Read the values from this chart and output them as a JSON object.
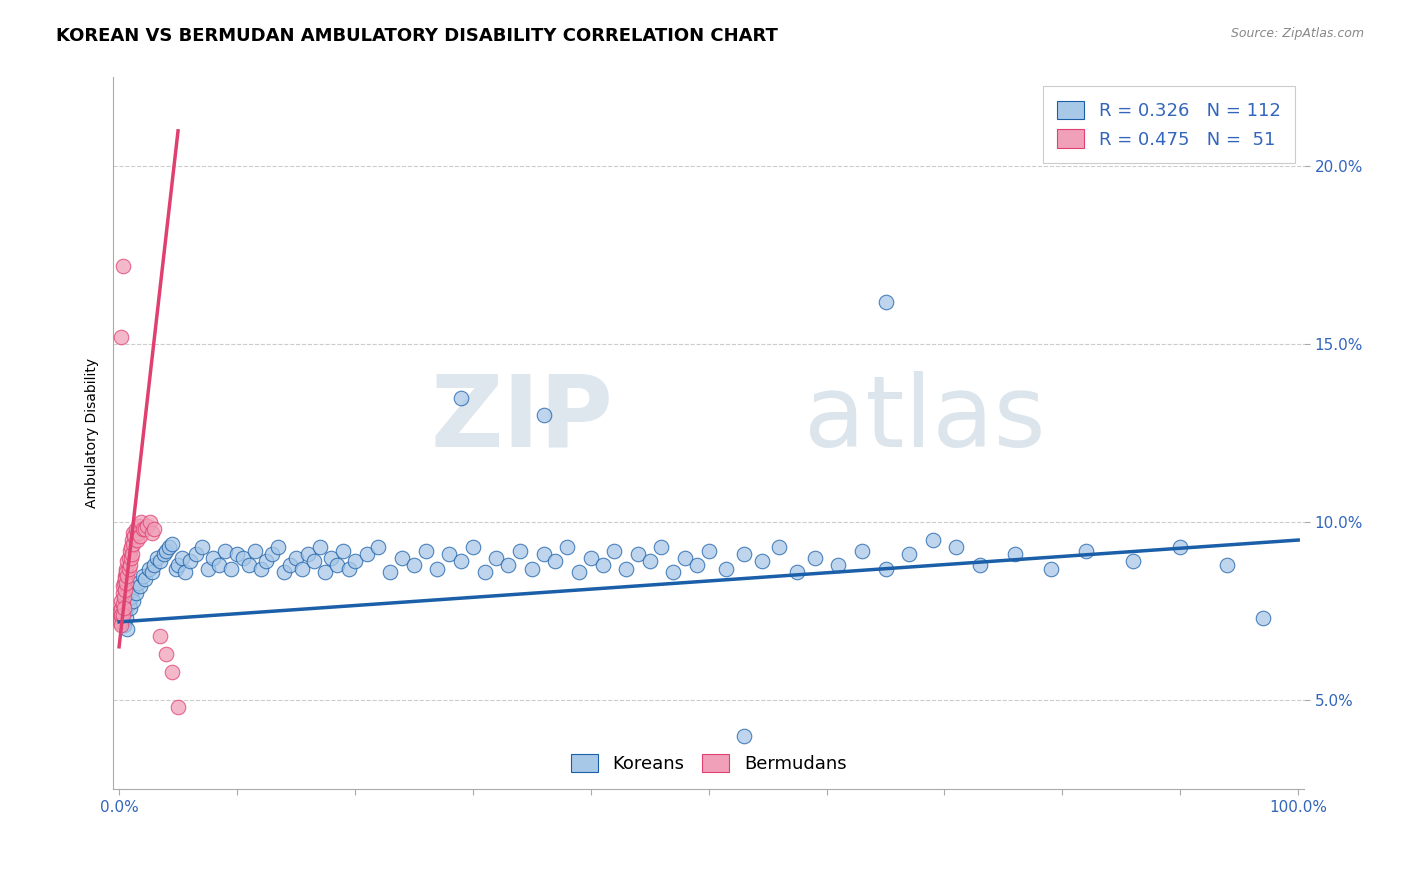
{
  "title": "KOREAN VS BERMUDAN AMBULATORY DISABILITY CORRELATION CHART",
  "source_text": "Source: ZipAtlas.com",
  "ylabel": "Ambulatory Disability",
  "ytick_labels": [
    "5.0%",
    "10.0%",
    "15.0%",
    "20.0%"
  ],
  "ytick_values": [
    0.05,
    0.1,
    0.15,
    0.2
  ],
  "xlim": [
    -0.005,
    1.005
  ],
  "ylim": [
    0.025,
    0.225
  ],
  "legend_blue_r": "0.326",
  "legend_blue_n": "112",
  "legend_pink_r": "0.475",
  "legend_pink_n": "51",
  "blue_color": "#a8c8e8",
  "pink_color": "#f0a0b8",
  "trendline_blue_color": "#1a5fa8",
  "trendline_pink_color": "#e04070",
  "watermark_zip": "ZIP",
  "watermark_atlas": "atlas",
  "title_fontsize": 13,
  "axis_label_fontsize": 10,
  "tick_fontsize": 11,
  "legend_fontsize": 13,
  "blue_scatter_x": [
    0.002,
    0.003,
    0.004,
    0.005,
    0.006,
    0.007,
    0.008,
    0.009,
    0.01,
    0.011,
    0.012,
    0.014,
    0.016,
    0.018,
    0.02,
    0.022,
    0.025,
    0.028,
    0.03,
    0.032,
    0.035,
    0.038,
    0.04,
    0.042,
    0.045,
    0.048,
    0.05,
    0.053,
    0.056,
    0.06,
    0.065,
    0.07,
    0.075,
    0.08,
    0.085,
    0.09,
    0.095,
    0.1,
    0.105,
    0.11,
    0.115,
    0.12,
    0.125,
    0.13,
    0.135,
    0.14,
    0.145,
    0.15,
    0.155,
    0.16,
    0.165,
    0.17,
    0.175,
    0.18,
    0.185,
    0.19,
    0.195,
    0.2,
    0.21,
    0.22,
    0.23,
    0.24,
    0.25,
    0.26,
    0.27,
    0.28,
    0.29,
    0.3,
    0.31,
    0.32,
    0.33,
    0.34,
    0.35,
    0.36,
    0.37,
    0.38,
    0.39,
    0.4,
    0.41,
    0.42,
    0.43,
    0.44,
    0.45,
    0.46,
    0.47,
    0.48,
    0.49,
    0.5,
    0.515,
    0.53,
    0.545,
    0.56,
    0.575,
    0.59,
    0.61,
    0.63,
    0.65,
    0.67,
    0.69,
    0.71,
    0.73,
    0.76,
    0.79,
    0.82,
    0.86,
    0.9,
    0.94,
    0.97,
    0.53,
    0.36,
    0.65,
    0.29
  ],
  "blue_scatter_y": [
    0.074,
    0.072,
    0.071,
    0.075,
    0.073,
    0.07,
    0.077,
    0.076,
    0.079,
    0.081,
    0.078,
    0.08,
    0.083,
    0.082,
    0.085,
    0.084,
    0.087,
    0.086,
    0.088,
    0.09,
    0.089,
    0.091,
    0.092,
    0.093,
    0.094,
    0.087,
    0.088,
    0.09,
    0.086,
    0.089,
    0.091,
    0.093,
    0.087,
    0.09,
    0.088,
    0.092,
    0.087,
    0.091,
    0.09,
    0.088,
    0.092,
    0.087,
    0.089,
    0.091,
    0.093,
    0.086,
    0.088,
    0.09,
    0.087,
    0.091,
    0.089,
    0.093,
    0.086,
    0.09,
    0.088,
    0.092,
    0.087,
    0.089,
    0.091,
    0.093,
    0.086,
    0.09,
    0.088,
    0.092,
    0.087,
    0.091,
    0.089,
    0.093,
    0.086,
    0.09,
    0.088,
    0.092,
    0.087,
    0.091,
    0.089,
    0.093,
    0.086,
    0.09,
    0.088,
    0.092,
    0.087,
    0.091,
    0.089,
    0.093,
    0.086,
    0.09,
    0.088,
    0.092,
    0.087,
    0.091,
    0.089,
    0.093,
    0.086,
    0.09,
    0.088,
    0.092,
    0.087,
    0.091,
    0.095,
    0.093,
    0.088,
    0.091,
    0.087,
    0.092,
    0.089,
    0.093,
    0.088,
    0.073,
    0.04,
    0.13,
    0.162,
    0.135
  ],
  "pink_scatter_x": [
    0.001,
    0.001,
    0.001,
    0.002,
    0.002,
    0.002,
    0.002,
    0.003,
    0.003,
    0.003,
    0.003,
    0.004,
    0.004,
    0.004,
    0.005,
    0.005,
    0.005,
    0.006,
    0.006,
    0.006,
    0.007,
    0.007,
    0.008,
    0.008,
    0.009,
    0.009,
    0.01,
    0.01,
    0.011,
    0.011,
    0.012,
    0.012,
    0.013,
    0.014,
    0.015,
    0.016,
    0.017,
    0.018,
    0.019,
    0.02,
    0.022,
    0.024,
    0.026,
    0.028,
    0.03,
    0.035,
    0.04,
    0.045,
    0.05,
    0.002,
    0.003
  ],
  "pink_scatter_y": [
    0.073,
    0.075,
    0.072,
    0.076,
    0.074,
    0.078,
    0.071,
    0.077,
    0.08,
    0.074,
    0.082,
    0.079,
    0.083,
    0.076,
    0.085,
    0.081,
    0.084,
    0.087,
    0.083,
    0.086,
    0.089,
    0.085,
    0.09,
    0.087,
    0.092,
    0.088,
    0.093,
    0.09,
    0.095,
    0.091,
    0.094,
    0.097,
    0.096,
    0.098,
    0.095,
    0.097,
    0.099,
    0.096,
    0.1,
    0.098,
    0.098,
    0.099,
    0.1,
    0.097,
    0.098,
    0.068,
    0.063,
    0.058,
    0.048,
    0.152,
    0.172
  ]
}
